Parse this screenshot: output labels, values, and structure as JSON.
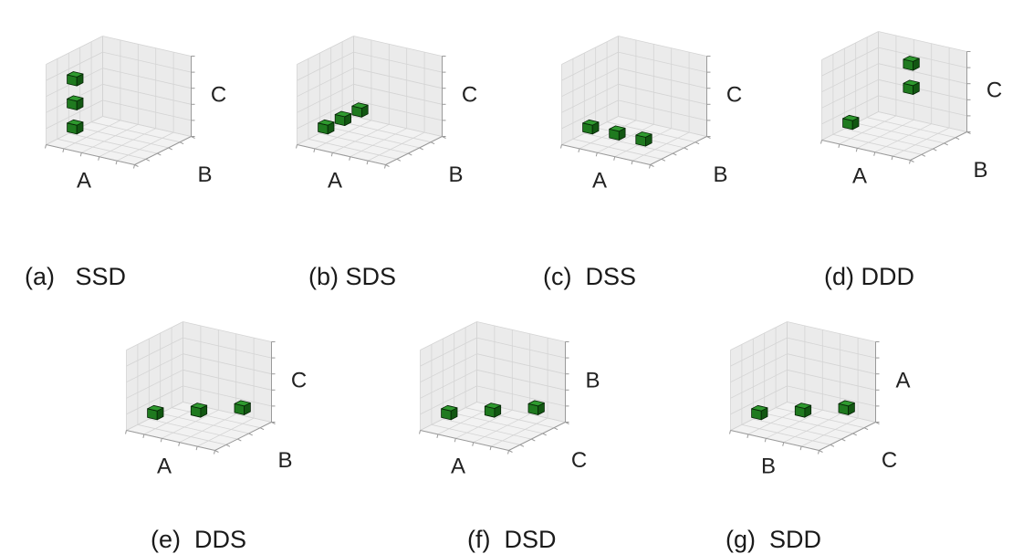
{
  "panels": [
    {
      "id": "a",
      "tag": "(a)",
      "code": "SSD",
      "axes": [
        "A",
        "B",
        "C"
      ],
      "cubes": [
        [
          1,
          1,
          1
        ],
        [
          1,
          1,
          2
        ],
        [
          1,
          1,
          3
        ]
      ]
    },
    {
      "id": "b",
      "tag": "(b)",
      "code": "SDS",
      "axes": [
        "A",
        "B",
        "C"
      ],
      "cubes": [
        [
          1,
          1,
          1
        ],
        [
          1,
          2,
          1
        ],
        [
          1,
          3,
          1
        ]
      ]
    },
    {
      "id": "c",
      "tag": "(c)",
      "code": "DSS",
      "axes": [
        "A",
        "B",
        "C"
      ],
      "cubes": [
        [
          1,
          1,
          1
        ],
        [
          2,
          1,
          1
        ],
        [
          3,
          1,
          1
        ]
      ]
    },
    {
      "id": "d",
      "tag": "(d)",
      "code": "DDD",
      "axes": [
        "A",
        "B",
        "C"
      ],
      "cubes": [
        [
          1,
          1,
          1
        ],
        [
          2,
          3,
          2
        ],
        [
          2,
          3,
          3
        ]
      ]
    },
    {
      "id": "e",
      "tag": "(e)",
      "code": "DDS",
      "axes": [
        "A",
        "B",
        "C"
      ],
      "cubes": [
        [
          1,
          1,
          1
        ],
        [
          2,
          2,
          1
        ],
        [
          3,
          3,
          1
        ]
      ]
    },
    {
      "id": "f",
      "tag": "(f)",
      "code": "DSD",
      "axes": [
        "A",
        "C",
        "B"
      ],
      "cubes": [
        [
          1,
          1,
          1
        ],
        [
          2,
          2,
          1
        ],
        [
          3,
          3,
          1
        ]
      ]
    },
    {
      "id": "g",
      "tag": "(g)",
      "code": "SDD",
      "axes": [
        "B",
        "C",
        "A"
      ],
      "cubes": [
        [
          1,
          1,
          1
        ],
        [
          2,
          2,
          1
        ],
        [
          3,
          3,
          1
        ]
      ]
    }
  ],
  "colors": {
    "pane_back": "#ebebeb",
    "pane_side": "#ebebeb",
    "pane_floor": "#f2f2f2",
    "grid": "#d4d4d4",
    "axis_line": "#9a9a9a",
    "cube_top": "#2f9a2f",
    "cube_front": "#1f7a1f",
    "cube_side": "#125712",
    "cube_edge": "#062406"
  }
}
